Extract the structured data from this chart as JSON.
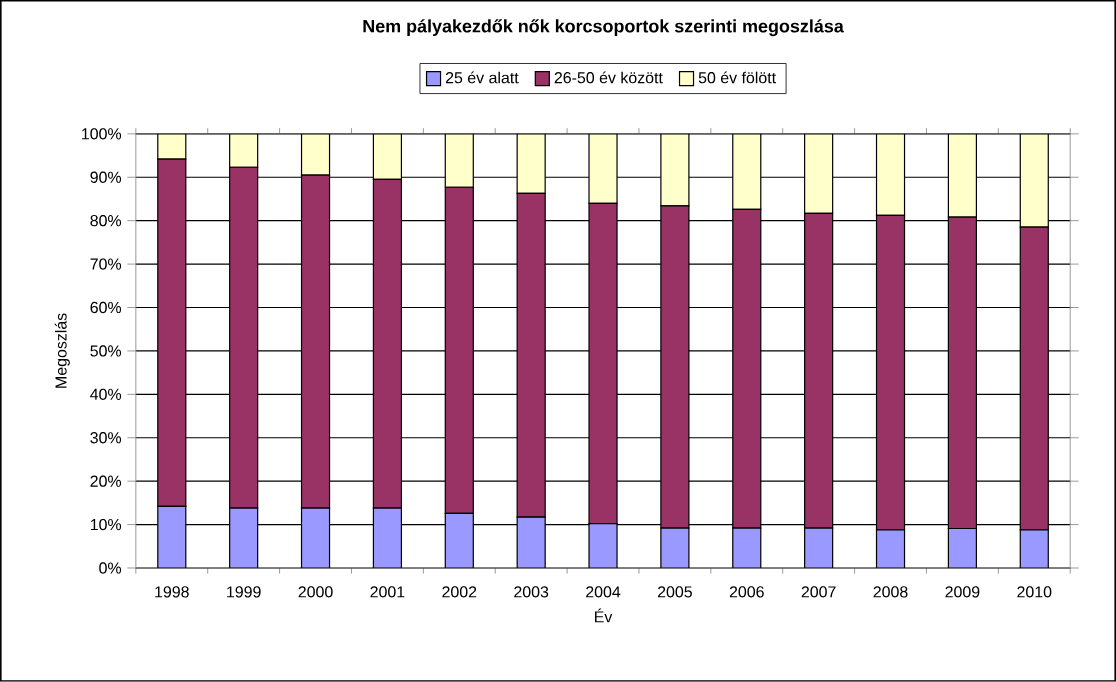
{
  "chart_data": {
    "type": "bar",
    "stacked": true,
    "title": "Nem pályakezdők nők korcsoportok szerinti megoszlása",
    "xlabel": "Év",
    "ylabel": "Megoszlás",
    "categories": [
      "1998",
      "1999",
      "2000",
      "2001",
      "2002",
      "2003",
      "2004",
      "2005",
      "2006",
      "2007",
      "2008",
      "2009",
      "2010"
    ],
    "series": [
      {
        "name": "25 év alatt",
        "color": "#9999ff",
        "values": [
          14.2,
          13.8,
          13.8,
          13.8,
          12.6,
          11.7,
          10.2,
          9.2,
          9.2,
          9.2,
          8.8,
          9.1,
          8.8
        ]
      },
      {
        "name": "26-50 év között",
        "color": "#993366",
        "values": [
          80.0,
          78.5,
          76.7,
          75.7,
          75.1,
          74.6,
          73.8,
          74.2,
          73.4,
          72.5,
          72.4,
          71.7,
          69.7
        ]
      },
      {
        "name": "50 év fölött",
        "color": "#ffffcc",
        "values": [
          5.8,
          7.7,
          9.5,
          10.5,
          12.3,
          13.7,
          16.0,
          16.6,
          17.4,
          18.3,
          18.8,
          19.2,
          21.5
        ]
      }
    ],
    "ylim": [
      0,
      100
    ],
    "yticks": [
      {
        "value": 0,
        "label": "0%"
      },
      {
        "value": 10,
        "label": "10%"
      },
      {
        "value": 20,
        "label": "20%"
      },
      {
        "value": 30,
        "label": "30%"
      },
      {
        "value": 40,
        "label": "40%"
      },
      {
        "value": 50,
        "label": "50%"
      },
      {
        "value": 60,
        "label": "60%"
      },
      {
        "value": 70,
        "label": "70%"
      },
      {
        "value": 80,
        "label": "80%"
      },
      {
        "value": 90,
        "label": "90%"
      },
      {
        "value": 100,
        "label": "100%"
      }
    ],
    "grid": "y",
    "legend": "top"
  }
}
